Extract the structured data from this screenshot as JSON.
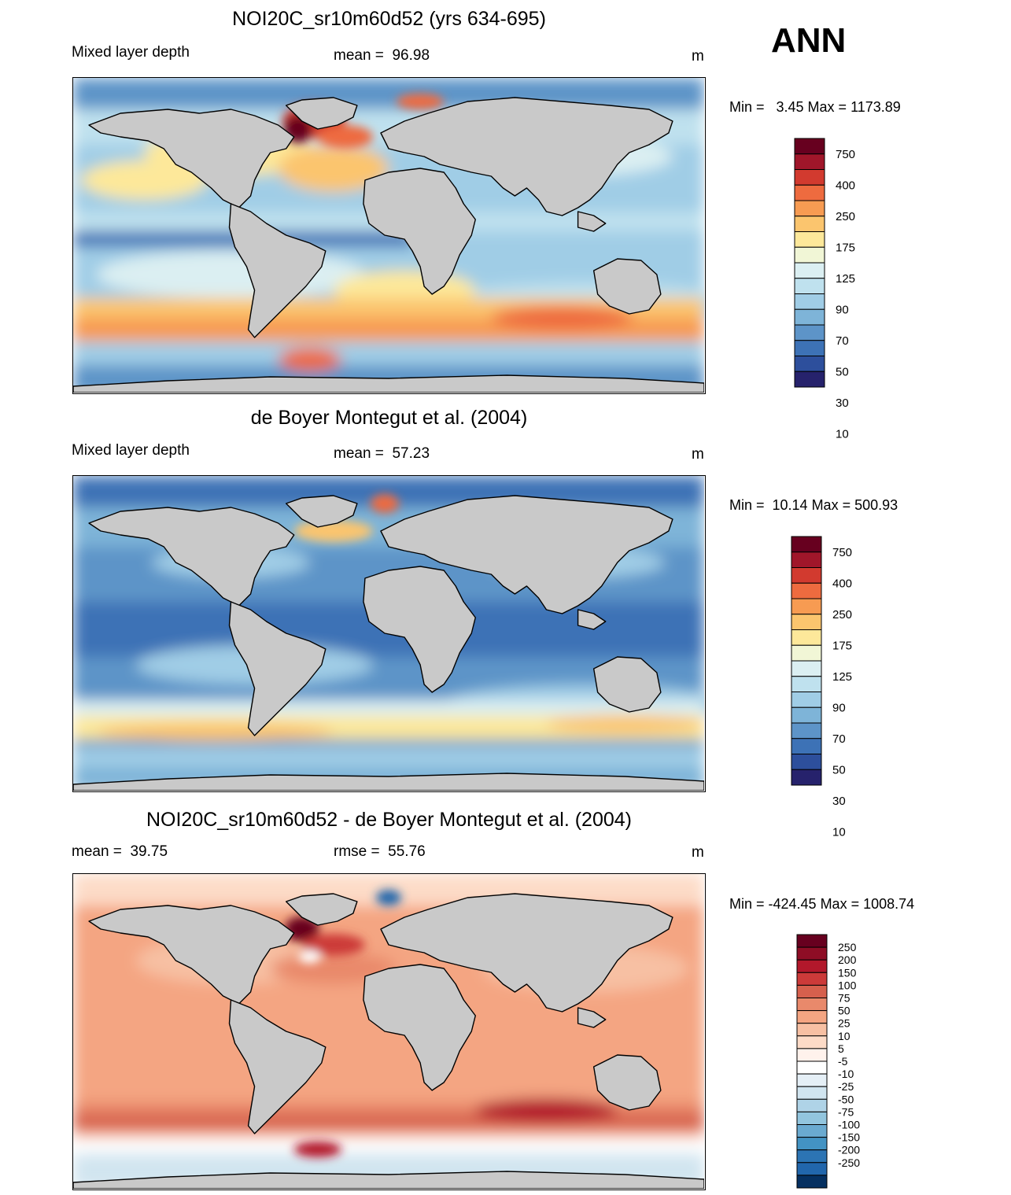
{
  "season": "ANN",
  "panels": [
    {
      "title": "NOI20C_sr10m60d52 (yrs 634-695)",
      "left_label": "Mixed layer depth",
      "center_label": "mean =  96.98",
      "units": "m",
      "minmax": "Min =   3.45 Max = 1173.89",
      "legend": {
        "labels": [
          "750",
          "400",
          "250",
          "175",
          "125",
          "90",
          "70",
          "50",
          "30",
          "10"
        ],
        "colors": [
          "#67001f",
          "#a0162a",
          "#d23a2f",
          "#ee6b3f",
          "#f79b52",
          "#fbc56e",
          "#fde89a",
          "#f1f6d6",
          "#dbeff2",
          "#bfe1ee",
          "#a0cde6",
          "#7eb4d8",
          "#5d94c8",
          "#3d72b6",
          "#2d4f9c",
          "#26226c"
        ]
      }
    },
    {
      "title": "de Boyer Montegut et al. (2004)",
      "left_label": "Mixed layer depth",
      "center_label": "mean =  57.23",
      "units": "m",
      "minmax": "Min =  10.14 Max = 500.93",
      "legend": {
        "labels": [
          "750",
          "400",
          "250",
          "175",
          "125",
          "90",
          "70",
          "50",
          "30",
          "10"
        ],
        "colors": [
          "#67001f",
          "#a0162a",
          "#d23a2f",
          "#ee6b3f",
          "#f79b52",
          "#fbc56e",
          "#fde89a",
          "#f1f6d6",
          "#dbeff2",
          "#bfe1ee",
          "#a0cde6",
          "#7eb4d8",
          "#5d94c8",
          "#3d72b6",
          "#2d4f9c",
          "#26226c"
        ]
      }
    },
    {
      "title": "NOI20C_sr10m60d52 - de Boyer Montegut et al. (2004)",
      "left_label": "mean =  39.75",
      "center_label": "rmse =  55.76",
      "units": "m",
      "minmax": "Min = -424.45 Max = 1008.74",
      "legend": {
        "labels": [
          "250",
          "200",
          "150",
          "100",
          "75",
          "50",
          "25",
          "10",
          "5",
          "-5",
          "-10",
          "-25",
          "-50",
          "-75",
          "-100",
          "-150",
          "-200",
          "-250"
        ],
        "colors": [
          "#67001f",
          "#8e0d25",
          "#b2182b",
          "#cc3a39",
          "#d6604d",
          "#e9896b",
          "#f4a582",
          "#f7c0a3",
          "#fddbc7",
          "#fff2ec",
          "#ffffff",
          "#e5eff6",
          "#d1e5f0",
          "#afd3e7",
          "#92c5de",
          "#6aaad0",
          "#4393c3",
          "#2c74b4",
          "#2166ac",
          "#053061"
        ]
      }
    }
  ],
  "colors": {
    "land": "#c9c9c9",
    "coast": "#000000"
  }
}
